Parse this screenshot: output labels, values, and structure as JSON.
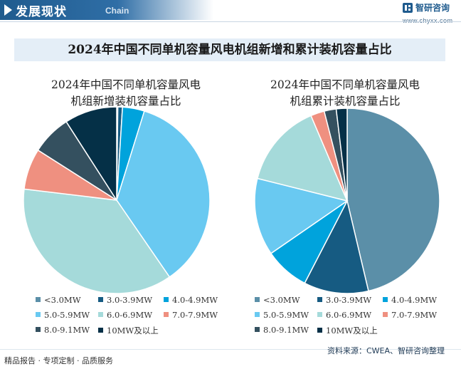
{
  "header": {
    "title": "发展现状",
    "title_en": "Chain",
    "logo_name": "智研咨询",
    "logo_url": "www.chyxx.com"
  },
  "main_title": "2024年中国不同单机容量风电机组新增和累计装机容量占比",
  "colors": [
    "#5b8fa8",
    "#165b82",
    "#00a3dc",
    "#69c9f1",
    "#a5dada",
    "#ef9080",
    "#34505f",
    "#053047"
  ],
  "chart_data": [
    {
      "type": "pie",
      "title_lines": [
        "2024年中国不同单机容量风电",
        "机组新增装机容量占比"
      ],
      "categories": [
        "<3.0MW",
        "3.0-3.9MW",
        "4.0-4.9MW",
        "5.0-5.9MW",
        "6.0-6.9MW",
        "7.0-7.9MW",
        "8.0-9.1MW",
        "10MW及以上"
      ],
      "values": [
        0.2,
        0.8,
        3.8,
        35.6,
        36.5,
        7.1,
        6.9,
        9.1
      ],
      "legend_labels": [
        "<3.0MW",
        "3.0-3.9MW",
        "4.0-4.9MW",
        "5.0-5.9MW",
        "6.0-6.9MW",
        "7.0-7.9MW",
        "8.0-9.1MW",
        "10MW及以上"
      ]
    },
    {
      "type": "pie",
      "title_lines": [
        "2024年中国不同单机容量风电",
        "机组累计装机容量占比"
      ],
      "categories": [
        "<3.0MW",
        "3.0-3.9MW",
        "4.0-4.9MW",
        "5.0-5.9MW",
        "6.0-6.9MW",
        "7.0-7.9MW",
        "8.0-9.1MW",
        "10MW及以上"
      ],
      "values": [
        46.3,
        11.3,
        7.8,
        13.5,
        14.7,
        2.4,
        2.1,
        1.9
      ],
      "legend_labels": [
        "<3.0MW",
        "3.0-3.9MW",
        "4.0-4.9MW",
        "5.0-5.9MW",
        "6.0-6.9MW",
        "7.0-7.9MW",
        "8.0-9.1MW",
        "10MW及以上"
      ]
    }
  ],
  "footer": {
    "left": "精品报告 · 专项定制 · 品质服务",
    "right": "资料来源：CWEA、智研咨询整理"
  }
}
